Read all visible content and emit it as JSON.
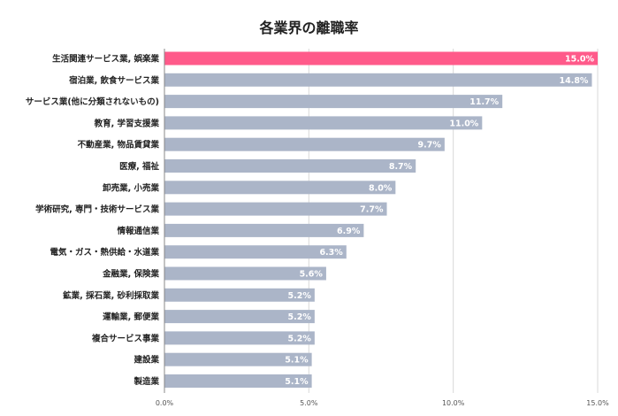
{
  "chart_data": {
    "type": "bar",
    "orientation": "horizontal",
    "title": "各業界の離職率",
    "xlabel": "",
    "ylabel": "",
    "xlim": [
      0,
      15
    ],
    "grid": true,
    "x_ticks": [
      "0.0%",
      "5.0%",
      "10.0%",
      "15.0%"
    ],
    "x_tick_values": [
      0,
      5,
      10,
      15
    ],
    "categories": [
      "生活関連サービス業, 娯楽業",
      "宿泊業, 飲食サービス業",
      "サービス業(他に分類されないもの)",
      "教育, 学習支援業",
      "不動産業, 物品賃貸業",
      "医療, 福祉",
      "卸売業, 小売業",
      "学術研究, 専門・技術サービス業",
      "情報通信業",
      "電気・ガス・熱供給・水道業",
      "金融業, 保険業",
      "鉱業, 採石業, 砂利採取業",
      "運輸業, 郵便業",
      "複合サービス事業",
      "建設業",
      "製造業"
    ],
    "values": [
      15.0,
      14.8,
      11.7,
      11.0,
      9.7,
      8.7,
      8.0,
      7.7,
      6.9,
      6.3,
      5.6,
      5.2,
      5.2,
      5.2,
      5.1,
      5.1
    ],
    "data_labels": [
      "15.0%",
      "14.8%",
      "11.7%",
      "11.0%",
      "9.7%",
      "8.7%",
      "8.0%",
      "7.7%",
      "6.9%",
      "6.3%",
      "5.6%",
      "5.2%",
      "5.2%",
      "5.2%",
      "5.1%",
      "5.1%"
    ],
    "highlight_index": 0,
    "colors": {
      "highlight": "#FF5A8A",
      "bar": "#ABB5C8",
      "grid": "#D9D9D9",
      "axis": "#888888"
    }
  }
}
